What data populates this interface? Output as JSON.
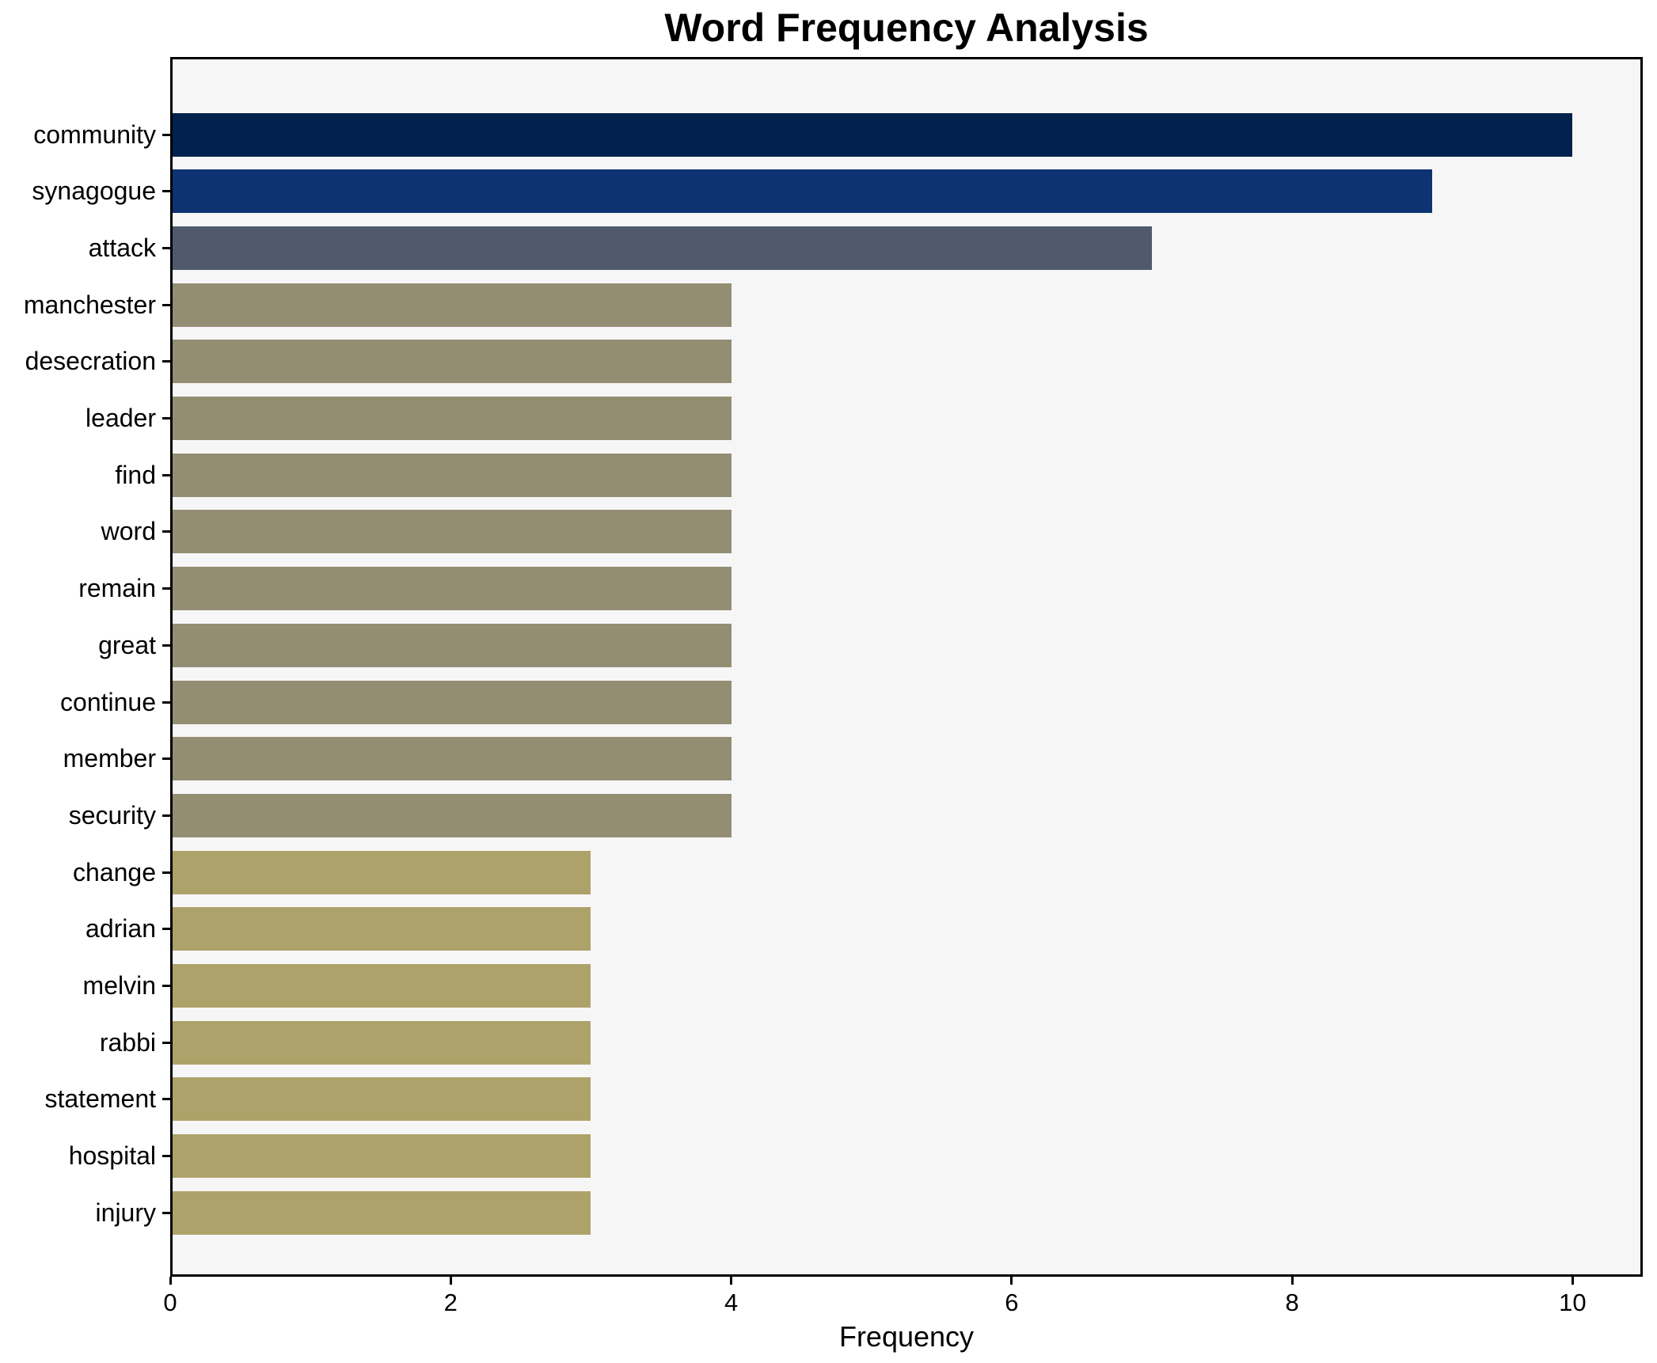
{
  "chart_data": {
    "type": "bar",
    "orientation": "horizontal",
    "title": "Word Frequency Analysis",
    "xlabel": "Frequency",
    "ylabel": "",
    "categories": [
      "community",
      "synagogue",
      "attack",
      "manchester",
      "desecration",
      "leader",
      "find",
      "word",
      "remain",
      "great",
      "continue",
      "member",
      "security",
      "change",
      "adrian",
      "melvin",
      "rabbi",
      "statement",
      "hospital",
      "injury"
    ],
    "values": [
      10,
      9,
      7,
      4,
      4,
      4,
      4,
      4,
      4,
      4,
      4,
      4,
      4,
      3,
      3,
      3,
      3,
      3,
      3,
      3
    ],
    "bar_colors": [
      "#02214d",
      "#0d3372",
      "#50596e",
      "#938d73",
      "#938d73",
      "#938d73",
      "#938d73",
      "#938d73",
      "#938d73",
      "#938d73",
      "#938d73",
      "#938d73",
      "#938d73",
      "#aea26b",
      "#aea26b",
      "#aea26b",
      "#aea26b",
      "#aea26b",
      "#aea26b",
      "#aea26b"
    ],
    "xlim": [
      0,
      10.5
    ],
    "xticks": [
      0,
      2,
      4,
      6,
      8,
      10
    ],
    "grid": false,
    "legend": "none",
    "plot_background": "#f7f6f7",
    "figure_background": "#ffffff",
    "spine_color": "#000000",
    "text_color": "#000000"
  }
}
